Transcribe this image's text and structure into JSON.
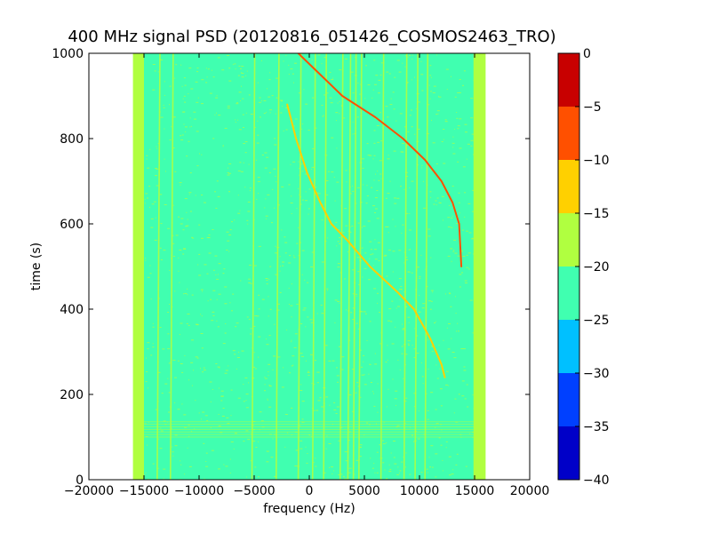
{
  "chart_data": {
    "type": "heatmap",
    "title": "400 MHz signal PSD (20120816_051426_COSMOS2463_TRO)",
    "xlabel": "frequency (Hz)",
    "ylabel": "time (s)",
    "xlim": [
      -20000,
      20000
    ],
    "ylim": [
      0,
      1000
    ],
    "xticks": [
      -20000,
      -15000,
      -10000,
      -5000,
      0,
      5000,
      10000,
      15000,
      20000
    ],
    "xtick_labels": [
      "−20000",
      "−15000",
      "−10000",
      "−5000",
      "0",
      "5000",
      "10000",
      "15000",
      "20000"
    ],
    "yticks": [
      0,
      200,
      400,
      600,
      800,
      1000
    ],
    "ytick_labels": [
      "0",
      "200",
      "400",
      "600",
      "800",
      "1000"
    ],
    "data_extent_x": [
      -16000,
      16000
    ],
    "background_level": -22.5,
    "band_edge_level": -17.5,
    "colorbar": {
      "levels": [
        -40,
        -35,
        -30,
        -25,
        -20,
        -15,
        -10,
        -5,
        0
      ],
      "tick_labels": [
        "−40",
        "−35",
        "−30",
        "−25",
        "−20",
        "−15",
        "−10",
        "−5",
        "0"
      ],
      "colors": [
        "#0000c8",
        "#0040ff",
        "#00c0ff",
        "#40ffb0",
        "#b0ff40",
        "#ffd000",
        "#ff5000",
        "#c80000"
      ]
    },
    "vertical_lines_hz": [
      -13800,
      -12600,
      -5200,
      -3000,
      -1000,
      300,
      1300,
      2800,
      3500,
      4000,
      4500,
      6500,
      8600,
      9600,
      10500
    ],
    "horizontal_band_s": [
      100,
      140
    ],
    "doppler_traces": [
      {
        "name": "",
        "level": -7.5,
        "points": [
          [
            -1000,
            1000
          ],
          [
            1000,
            950
          ],
          [
            3000,
            900
          ],
          [
            6000,
            850
          ],
          [
            8500,
            800
          ],
          [
            10500,
            750
          ],
          [
            12000,
            700
          ],
          [
            13000,
            650
          ],
          [
            13600,
            600
          ],
          [
            13800,
            500
          ]
        ]
      },
      {
        "name": "",
        "level": -12.5,
        "points": [
          [
            -2000,
            880
          ],
          [
            -1200,
            800
          ],
          [
            -200,
            720
          ],
          [
            1000,
            650
          ],
          [
            2000,
            600
          ],
          [
            3500,
            560
          ],
          [
            5500,
            500
          ],
          [
            8000,
            440
          ],
          [
            9500,
            400
          ],
          [
            11000,
            330
          ],
          [
            12000,
            270
          ],
          [
            12300,
            240
          ]
        ]
      }
    ],
    "grid": false
  }
}
